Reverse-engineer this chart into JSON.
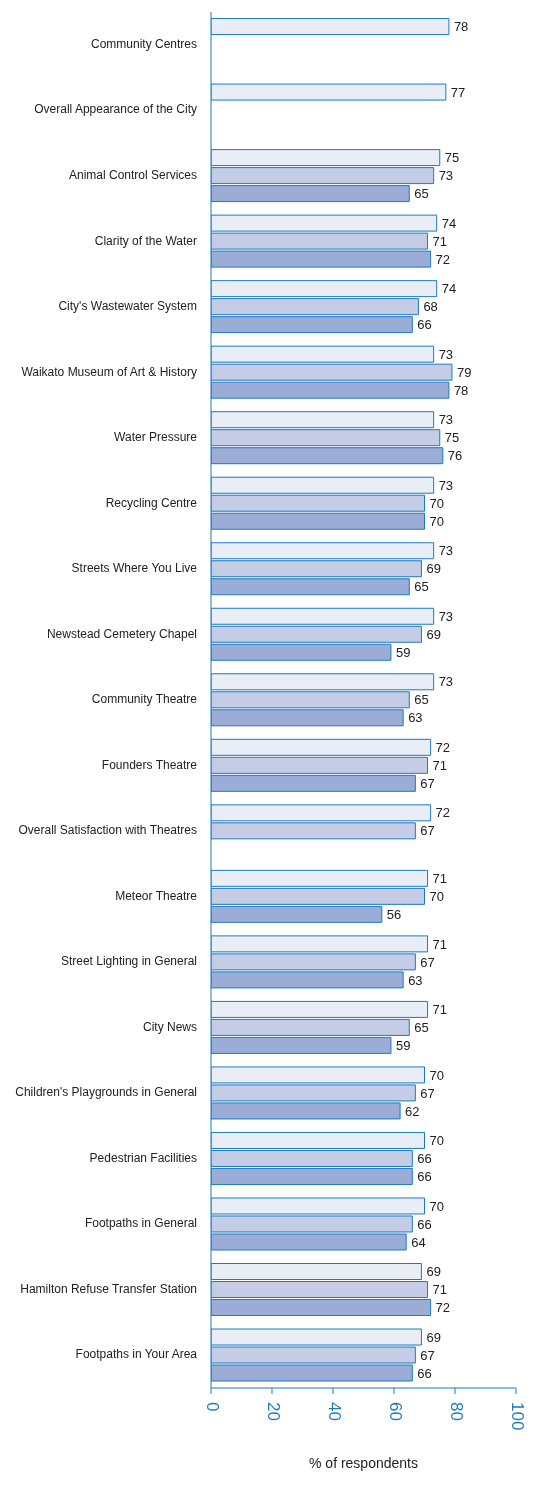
{
  "chart_data": {
    "type": "bar",
    "orientation": "horizontal",
    "xlabel": "% of respondents",
    "categories": [
      "Community Centres",
      "Overall Appearance of the City",
      "Animal Control Services",
      "Clarity of the Water",
      "City's Wastewater System",
      "Waikato Museum of Art & History",
      "Water Pressure",
      "Recycling Centre",
      "Streets Where You Live",
      "Newstead Cemetery Chapel",
      "Community Theatre",
      "Founders Theatre",
      "Overall Satisfaction with Theatres",
      "Meteor Theatre",
      "Street Lighting in General",
      "City News",
      "Children's Playgrounds in General",
      "Pedestrian Facilities",
      "Footpaths in General",
      "Hamilton Refuse Transfer Station",
      "Footpaths in Your Area"
    ],
    "series": [
      {
        "color": "#e9edf6",
        "values": [
          78,
          77,
          75,
          74,
          74,
          73,
          73,
          73,
          73,
          73,
          73,
          72,
          72,
          71,
          71,
          71,
          70,
          70,
          70,
          69,
          69
        ]
      },
      {
        "color": "#c4cde5",
        "values": [
          null,
          null,
          73,
          71,
          68,
          79,
          75,
          70,
          69,
          69,
          65,
          71,
          67,
          70,
          67,
          65,
          67,
          66,
          66,
          71,
          67
        ]
      },
      {
        "color": "#9badd6",
        "values": [
          null,
          null,
          65,
          72,
          66,
          78,
          76,
          70,
          65,
          59,
          63,
          67,
          null,
          56,
          63,
          59,
          62,
          66,
          64,
          72,
          66
        ]
      }
    ],
    "xlim": [
      0,
      100
    ],
    "xticks": [
      0,
      20,
      40,
      60,
      80,
      100
    ],
    "data_labels": true,
    "grid": false,
    "legend": false
  }
}
